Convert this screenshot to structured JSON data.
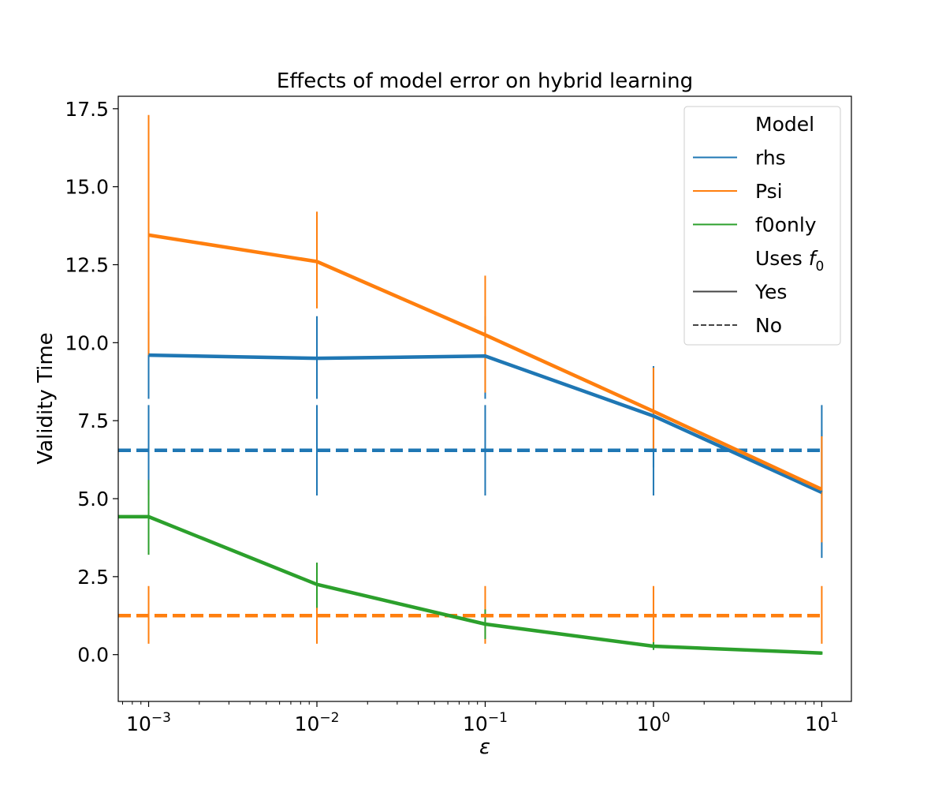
{
  "chart_data": {
    "type": "line",
    "title": "Effects of model error on hybrid learning",
    "xlabel": "ε",
    "ylabel": "Validity Time",
    "xscale": "log",
    "xlim": [
      0.00066,
      15
    ],
    "ylim": [
      -1.5,
      17.9
    ],
    "grid": false,
    "x": [
      0.001,
      0.01,
      0.1,
      1,
      10
    ],
    "xtick_labels": [
      {
        "base": "10",
        "exp": "−3",
        "value": 0.001
      },
      {
        "base": "10",
        "exp": "−2",
        "value": 0.01
      },
      {
        "base": "10",
        "exp": "−1",
        "value": 0.1
      },
      {
        "base": "10",
        "exp": "0",
        "value": 1
      },
      {
        "base": "10",
        "exp": "1",
        "value": 10
      }
    ],
    "yticks": [
      0.0,
      2.5,
      5.0,
      7.5,
      10.0,
      12.5,
      15.0,
      17.5
    ],
    "ytick_labels": [
      "0.0",
      "2.5",
      "5.0",
      "7.5",
      "10.0",
      "12.5",
      "15.0",
      "17.5"
    ],
    "legend": {
      "placement": "top-right",
      "entries": [
        {
          "label": "Model",
          "kind": "header"
        },
        {
          "label": "rhs",
          "kind": "line",
          "color": "#1f77b4",
          "dash": "solid"
        },
        {
          "label": "Psi",
          "kind": "line",
          "color": "#ff7f0e",
          "dash": "solid"
        },
        {
          "label": "f0only",
          "kind": "line",
          "color": "#2ca02c",
          "dash": "solid"
        },
        {
          "label": "Uses ",
          "math": "f",
          "sub": "0",
          "kind": "header"
        },
        {
          "label": "Yes",
          "kind": "line",
          "color": "#444444",
          "dash": "solid"
        },
        {
          "label": "No",
          "kind": "line",
          "color": "#444444",
          "dash": "dashed"
        }
      ]
    },
    "series": [
      {
        "name": "rhs",
        "uses_f0": "No",
        "color": "#1f77b4",
        "dash": "dashed",
        "x": [
          0.00066,
          0.001,
          0.01,
          0.1,
          1,
          10
        ],
        "values": [
          6.55,
          6.55,
          6.55,
          6.55,
          6.55,
          6.55
        ],
        "err_low": [
          null,
          5.1,
          5.1,
          5.1,
          5.1,
          5.1
        ],
        "err_high": [
          null,
          8.0,
          8.0,
          8.0,
          8.0,
          8.0
        ]
      },
      {
        "name": "Psi",
        "uses_f0": "No",
        "color": "#ff7f0e",
        "dash": "dashed",
        "x": [
          0.00066,
          0.001,
          0.01,
          0.1,
          1,
          10
        ],
        "values": [
          1.25,
          1.25,
          1.25,
          1.25,
          1.25,
          1.25
        ],
        "err_low": [
          null,
          0.35,
          0.35,
          0.35,
          0.35,
          0.35
        ],
        "err_high": [
          null,
          2.2,
          2.2,
          2.2,
          2.2,
          2.2
        ]
      },
      {
        "name": "rhs",
        "uses_f0": "Yes",
        "color": "#1f77b4",
        "dash": "solid",
        "x": [
          0.001,
          0.01,
          0.1,
          1,
          10
        ],
        "values": [
          9.6,
          9.5,
          9.57,
          7.65,
          5.2
        ],
        "err_low": [
          8.2,
          8.2,
          8.2,
          6.0,
          3.1
        ],
        "err_high": [
          11.0,
          10.85,
          10.85,
          9.25,
          7.2
        ]
      },
      {
        "name": "Psi",
        "uses_f0": "Yes",
        "color": "#ff7f0e",
        "dash": "solid",
        "x": [
          0.001,
          0.01,
          0.1,
          1,
          10
        ],
        "values": [
          13.45,
          12.6,
          10.25,
          7.8,
          5.3
        ],
        "err_low": [
          9.6,
          11.1,
          8.4,
          6.5,
          3.6
        ],
        "err_high": [
          17.3,
          14.2,
          12.15,
          9.2,
          7.0
        ]
      },
      {
        "name": "f0only",
        "uses_f0": "Yes",
        "color": "#2ca02c",
        "dash": "solid",
        "x": [
          0.00066,
          0.001,
          0.01,
          0.1,
          1,
          10
        ],
        "values": [
          4.42,
          4.42,
          2.25,
          0.98,
          0.27,
          0.05
        ],
        "err_low": [
          null,
          3.2,
          1.5,
          0.5,
          0.15,
          0.0
        ],
        "err_high": [
          null,
          5.6,
          2.95,
          1.45,
          0.4,
          0.1
        ]
      }
    ]
  }
}
